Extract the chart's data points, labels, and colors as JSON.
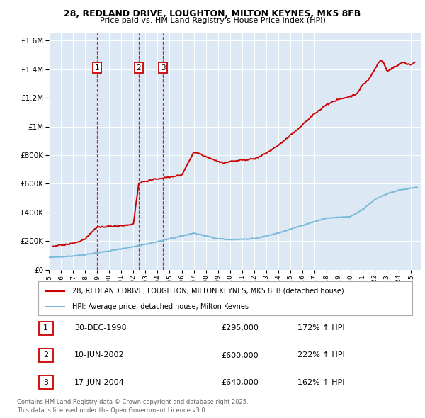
{
  "title": "28, REDLAND DRIVE, LOUGHTON, MILTON KEYNES, MK5 8FB",
  "subtitle": "Price paid vs. HM Land Registry's House Price Index (HPI)",
  "legend_line1": "28, REDLAND DRIVE, LOUGHTON, MILTON KEYNES, MK5 8FB (detached house)",
  "legend_line2": "HPI: Average price, detached house, Milton Keynes",
  "footer1": "Contains HM Land Registry data © Crown copyright and database right 2025.",
  "footer2": "This data is licensed under the Open Government Licence v3.0.",
  "transactions": [
    {
      "label": "1",
      "date": "30-DEC-1998",
      "price": "£295,000",
      "hpi_pct": "172% ↑ HPI",
      "x": 1998.99
    },
    {
      "label": "2",
      "date": "10-JUN-2002",
      "price": "£600,000",
      "hpi_pct": "222% ↑ HPI",
      "x": 2002.44
    },
    {
      "label": "3",
      "date": "17-JUN-2004",
      "price": "£640,000",
      "hpi_pct": "162% ↑ HPI",
      "x": 2004.46
    }
  ],
  "hpi_line_color": "#7ab8d9",
  "price_line_color": "#cc0000",
  "plot_bg": "#dce9f5",
  "grid_color": "#ffffff",
  "vline_color": "#cc0000",
  "marker_box_color": "#cc0000",
  "ylim": [
    0,
    1650000
  ],
  "yticks": [
    0,
    200000,
    400000,
    600000,
    800000,
    1000000,
    1200000,
    1400000,
    1600000
  ],
  "ytick_labels": [
    "£0",
    "£200K",
    "£400K",
    "£600K",
    "£800K",
    "£1M",
    "£1.2M",
    "£1.4M",
    "£1.6M"
  ],
  "xlim_start": 1995.0,
  "xlim_end": 2025.8
}
